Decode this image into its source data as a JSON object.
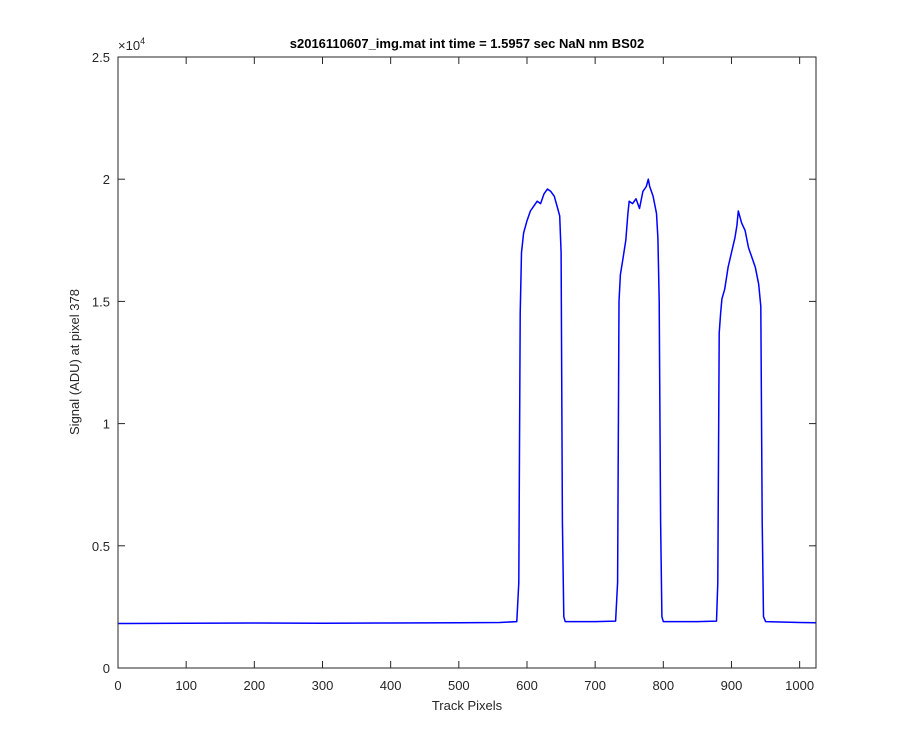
{
  "chart_data": {
    "type": "line",
    "title": "s2016110607_img.mat int time = 1.5957 sec  NaN nm BS02",
    "xlabel": "Track Pixels",
    "ylabel": "Signal (ADU) at pixel 378",
    "xlim": [
      0,
      1024
    ],
    "ylim": [
      0,
      25000
    ],
    "x_ticks": [
      0,
      100,
      200,
      300,
      400,
      500,
      600,
      700,
      800,
      900,
      1000
    ],
    "y_ticks": [
      0,
      5000,
      10000,
      15000,
      20000,
      25000
    ],
    "x_tick_labels": [
      "0",
      "100",
      "200",
      "300",
      "400",
      "500",
      "600",
      "700",
      "800",
      "900",
      "1000"
    ],
    "y_tick_labels": [
      "0",
      "0.5",
      "1",
      "1.5",
      "2",
      "2.5"
    ],
    "y_exponent_base": "×10",
    "y_exponent_power": "4",
    "grid": false,
    "line_color": "#0000ff",
    "series": [
      {
        "x": [
          0,
          100,
          200,
          300,
          400,
          500,
          560,
          585,
          588,
          590,
          592,
          595,
          600,
          605,
          610,
          615,
          620,
          625,
          630,
          635,
          640,
          645,
          648,
          650,
          652,
          654,
          656,
          700,
          730,
          733,
          735,
          737,
          740,
          745,
          748,
          750,
          755,
          760,
          765,
          770,
          775,
          778,
          780,
          785,
          790,
          792,
          794,
          796,
          798,
          800,
          850,
          878,
          880,
          882,
          884,
          886,
          890,
          895,
          900,
          905,
          908,
          910,
          915,
          920,
          925,
          930,
          935,
          940,
          943,
          945,
          947,
          950,
          1000,
          1024
        ],
        "y": [
          1820,
          1830,
          1840,
          1835,
          1840,
          1850,
          1860,
          1900,
          3500,
          14500,
          17000,
          17800,
          18300,
          18700,
          18900,
          19100,
          19000,
          19400,
          19600,
          19500,
          19300,
          18800,
          18500,
          17000,
          6000,
          2100,
          1900,
          1900,
          1920,
          3500,
          15000,
          16100,
          16600,
          17500,
          18600,
          19100,
          19000,
          19200,
          18800,
          19500,
          19700,
          20000,
          19700,
          19300,
          18600,
          17600,
          15000,
          6000,
          2100,
          1900,
          1900,
          1920,
          3500,
          13700,
          14500,
          15100,
          15500,
          16400,
          17000,
          17600,
          18100,
          18700,
          18200,
          17900,
          17200,
          16800,
          16400,
          15700,
          14800,
          6000,
          2100,
          1900,
          1860,
          1850
        ]
      }
    ]
  }
}
